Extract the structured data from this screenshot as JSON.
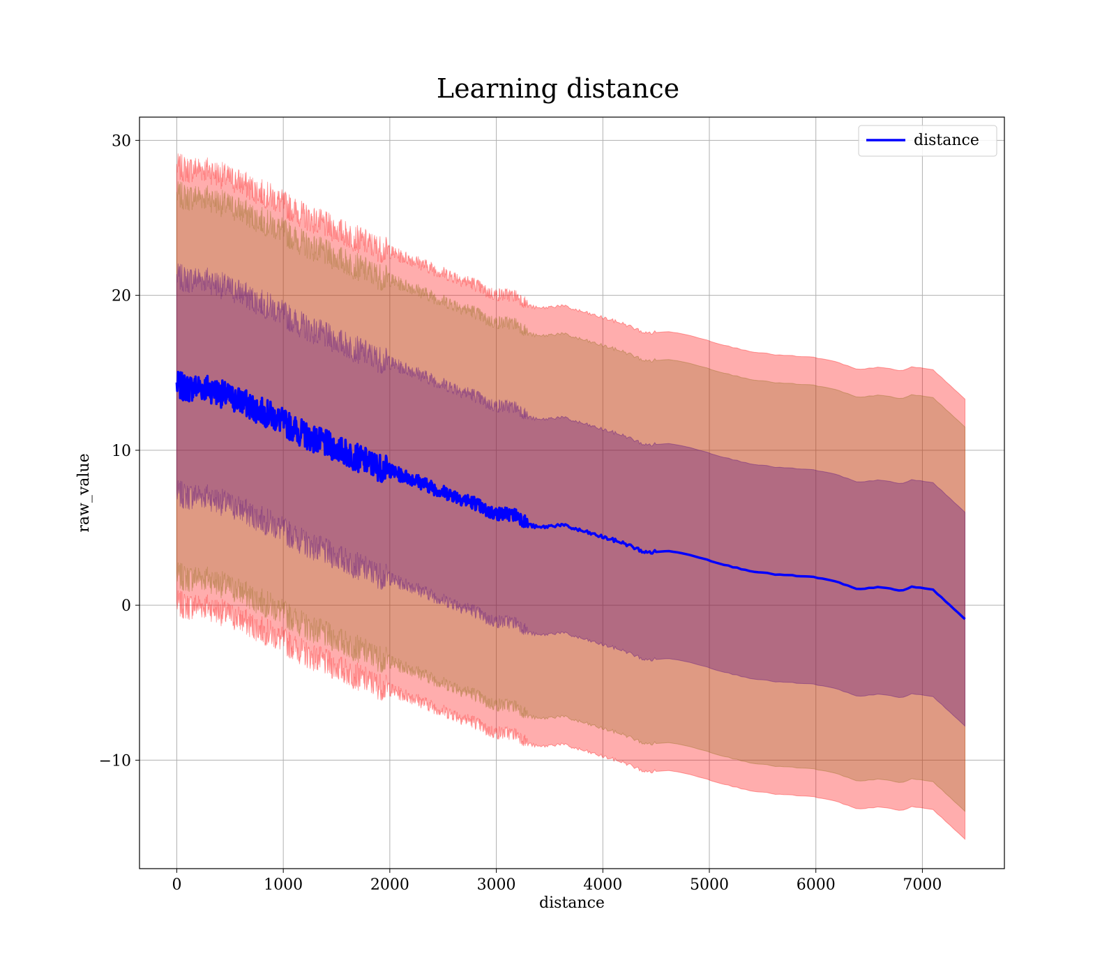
{
  "chart_data": {
    "type": "line",
    "title": "Learning distance",
    "xlabel": "distance",
    "ylabel": "raw_value",
    "xlim": [
      -350,
      7770
    ],
    "ylim": [
      -17.0,
      31.5
    ],
    "xticks": [
      0,
      1000,
      2000,
      3000,
      4000,
      5000,
      6000,
      7000
    ],
    "yticks": [
      -10,
      0,
      10,
      20,
      30
    ],
    "grid": true,
    "legend": {
      "position": "top-right",
      "entries": [
        "distance"
      ]
    },
    "colors": {
      "line": "#0000ff",
      "band_outer": "#ff0000",
      "band_middle": "#8b6914",
      "band_inner": "#4b0082"
    },
    "series": [
      {
        "name": "distance",
        "x": [
          0,
          100,
          200,
          300,
          400,
          500,
          600,
          700,
          800,
          900,
          1000,
          1100,
          1200,
          1300,
          1400,
          1500,
          1600,
          1700,
          1800,
          1900,
          2000,
          2100,
          2200,
          2300,
          2400,
          2500,
          2600,
          2700,
          2800,
          2900,
          3000,
          3100,
          3200,
          3300,
          3400,
          3500,
          3600,
          3700,
          3800,
          3900,
          4000,
          4200,
          4400,
          4600,
          4800,
          5000,
          5200,
          5400,
          5600,
          5800,
          6000,
          6200,
          6400,
          6600,
          6800,
          6900,
          7100,
          7400
        ],
        "y": [
          14.2,
          14.0,
          14.1,
          14.0,
          13.7,
          13.4,
          13.2,
          12.8,
          12.5,
          12.2,
          11.8,
          11.4,
          11.0,
          10.7,
          10.4,
          10.1,
          9.8,
          9.5,
          9.2,
          8.9,
          8.7,
          8.4,
          8.2,
          7.9,
          7.6,
          7.3,
          7.1,
          6.8,
          6.6,
          6.1,
          5.9,
          5.9,
          5.8,
          5.2,
          5.0,
          5.1,
          5.2,
          5.0,
          4.8,
          4.6,
          4.4,
          4.0,
          3.4,
          3.5,
          3.3,
          2.9,
          2.5,
          2.2,
          2.0,
          1.9,
          1.8,
          1.5,
          1.0,
          1.2,
          0.9,
          1.2,
          1.0,
          -0.9
        ]
      }
    ],
    "bands": [
      {
        "level": "outer",
        "half_width_start": 14.1,
        "half_width_end": 14.2
      },
      {
        "level": "middle",
        "half_width_start": 12.3,
        "half_width_end": 12.4
      },
      {
        "level": "inner",
        "half_width_start": 7.0,
        "half_width_end": 6.9
      }
    ]
  }
}
